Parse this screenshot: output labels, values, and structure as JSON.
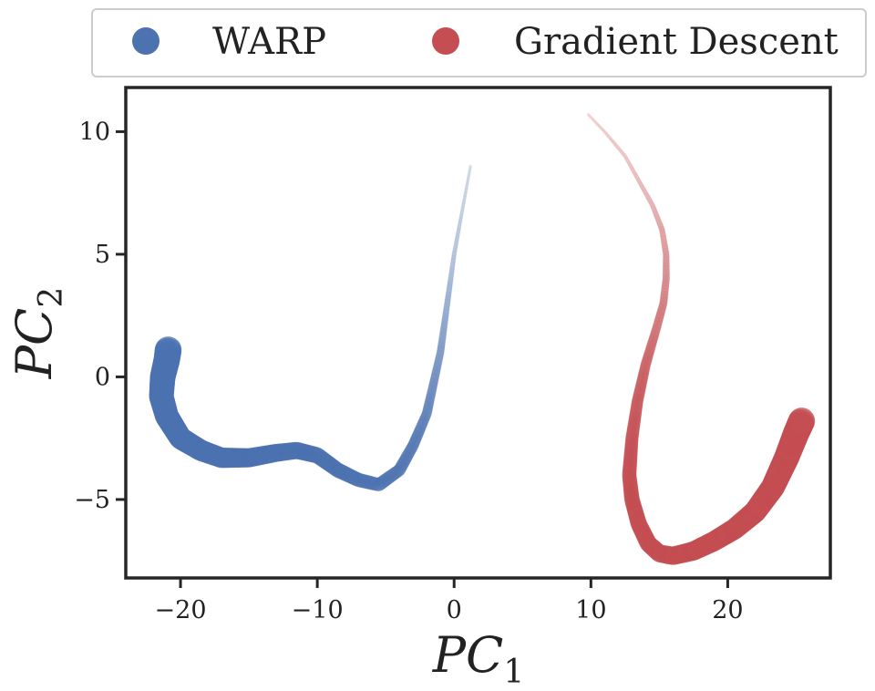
{
  "chart_data": {
    "type": "scatter",
    "title": "",
    "xlabel": "PC",
    "xlabel_sub": "1",
    "ylabel": "PC",
    "ylabel_sub": "2",
    "xlim": [
      -24,
      27.5
    ],
    "ylim": [
      -8.2,
      11.8
    ],
    "xticks": [
      -20,
      -10,
      0,
      10,
      20
    ],
    "xtick_labels": [
      "−20",
      "−10",
      "0",
      "10",
      "20"
    ],
    "yticks": [
      -5,
      0,
      5,
      10
    ],
    "ytick_labels": [
      "−5",
      "0",
      "5",
      "10"
    ],
    "grid": false,
    "legend": {
      "placement": "top, outside plot",
      "columns": 2
    },
    "series": [
      {
        "name": "WARP",
        "color": "#4c72b0",
        "path": [
          [
            1.2,
            8.6
          ],
          [
            0.6,
            6.8
          ],
          [
            0.0,
            5.0
          ],
          [
            -0.5,
            3.0
          ],
          [
            -1.0,
            1.0
          ],
          [
            -2.0,
            -1.5
          ],
          [
            -3.0,
            -2.8
          ],
          [
            -4.0,
            -3.8
          ],
          [
            -5.5,
            -4.4
          ],
          [
            -7.0,
            -4.2
          ],
          [
            -8.5,
            -3.8
          ],
          [
            -10.0,
            -3.2
          ],
          [
            -11.5,
            -3.0
          ],
          [
            -13.0,
            -3.1
          ],
          [
            -15.0,
            -3.3
          ],
          [
            -17.0,
            -3.3
          ],
          [
            -18.5,
            -3.0
          ],
          [
            -20.0,
            -2.5
          ],
          [
            -21.0,
            -1.6
          ],
          [
            -21.4,
            -0.8
          ],
          [
            -21.3,
            0.0
          ],
          [
            -21.0,
            0.7
          ],
          [
            -20.9,
            1.1
          ]
        ]
      },
      {
        "name": "Gradient Descent",
        "color": "#c44e52",
        "path": [
          [
            9.8,
            10.7
          ],
          [
            11.0,
            10.0
          ],
          [
            12.5,
            9.0
          ],
          [
            13.5,
            8.0
          ],
          [
            14.5,
            7.0
          ],
          [
            15.2,
            6.0
          ],
          [
            15.5,
            5.0
          ],
          [
            15.5,
            4.0
          ],
          [
            15.3,
            3.0
          ],
          [
            14.8,
            2.0
          ],
          [
            14.0,
            0.5
          ],
          [
            13.4,
            -1.0
          ],
          [
            13.0,
            -2.5
          ],
          [
            12.8,
            -4.0
          ],
          [
            13.0,
            -5.0
          ],
          [
            13.5,
            -6.0
          ],
          [
            14.2,
            -6.8
          ],
          [
            15.0,
            -7.2
          ],
          [
            16.0,
            -7.3
          ],
          [
            17.5,
            -7.1
          ],
          [
            19.0,
            -6.7
          ],
          [
            20.5,
            -6.2
          ],
          [
            22.0,
            -5.5
          ],
          [
            23.3,
            -4.5
          ],
          [
            24.3,
            -3.3
          ],
          [
            25.0,
            -2.3
          ],
          [
            25.4,
            -1.8
          ]
        ]
      }
    ]
  }
}
